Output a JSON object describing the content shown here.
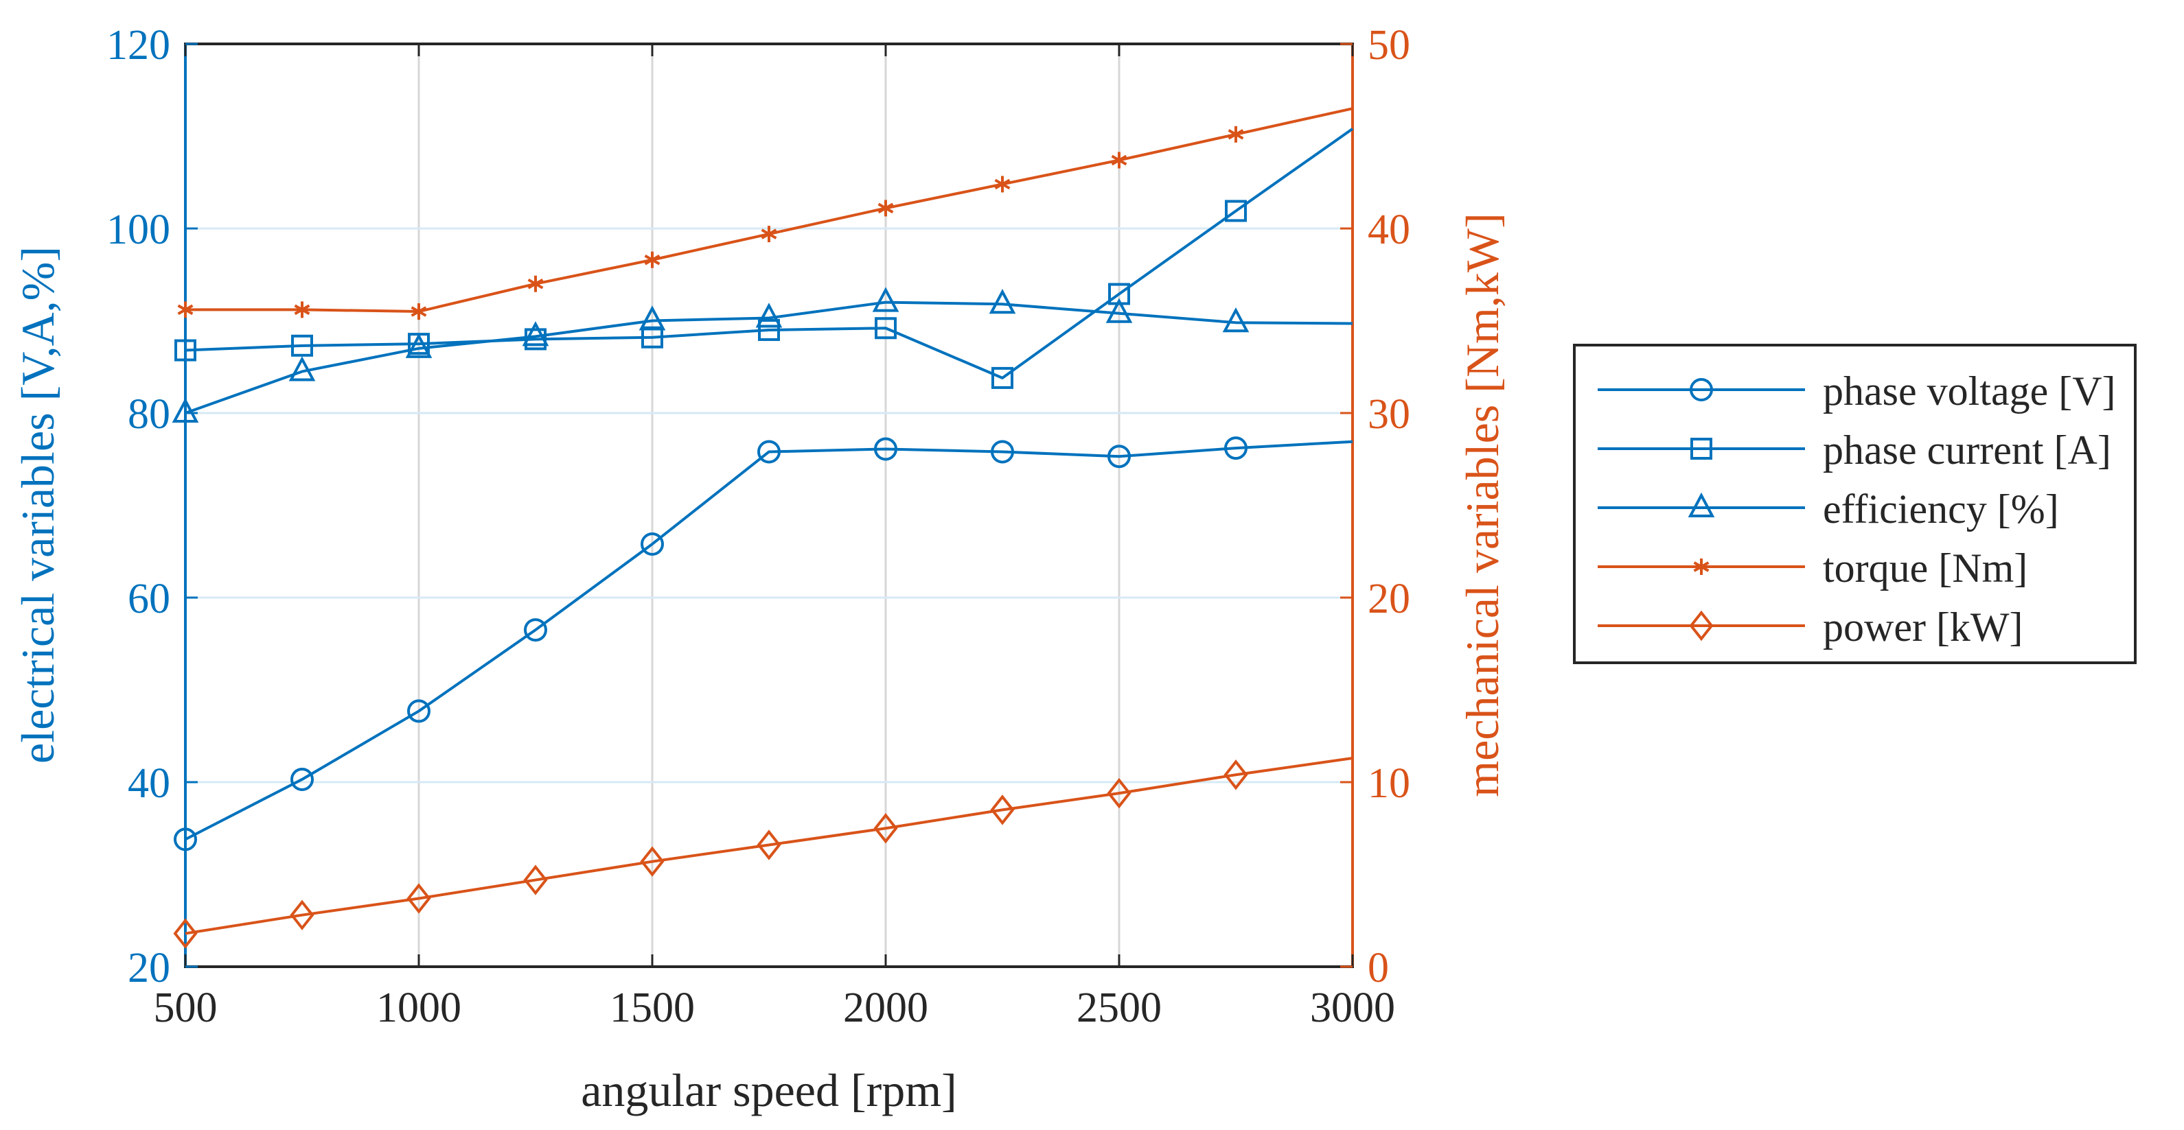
{
  "chart_data": {
    "type": "line",
    "x_label": "angular speed [rpm]",
    "y_left_label": "electrical variables [V,A,%]",
    "y_right_label": "mechanical variables [Nm,kW]",
    "xlim": [
      500,
      3000
    ],
    "ylim_left": [
      20,
      120
    ],
    "ylim_right": [
      0,
      50
    ],
    "x_ticks": [
      500,
      1000,
      1500,
      2000,
      2500,
      3000
    ],
    "y_left_ticks": [
      20,
      40,
      60,
      80,
      100,
      120
    ],
    "y_right_ticks": [
      0,
      10,
      20,
      30,
      40,
      50
    ],
    "grid": true,
    "legend_position": "outside-right",
    "x": [
      500,
      750,
      1000,
      1250,
      1500,
      1750,
      2000,
      2250,
      2500,
      2750,
      3000
    ],
    "series": [
      {
        "name": "phase voltage [V]",
        "axis": "left",
        "marker": "circle",
        "color": "#0072BD",
        "values": [
          33.8,
          40.3,
          47.7,
          56.5,
          65.8,
          75.8,
          76.1,
          75.8,
          75.3,
          76.2,
          76.9
        ]
      },
      {
        "name": "phase current [A]",
        "axis": "left",
        "marker": "square",
        "color": "#0072BD",
        "values": [
          86.8,
          87.3,
          87.5,
          88.0,
          88.2,
          89.0,
          89.2,
          83.8,
          92.9,
          101.9,
          110.8
        ]
      },
      {
        "name": "efficiency [%]",
        "axis": "left",
        "marker": "triangle",
        "color": "#0072BD",
        "values": [
          80.0,
          84.5,
          87.0,
          88.3,
          90.0,
          90.3,
          92.0,
          91.8,
          90.8,
          89.8,
          89.7
        ]
      },
      {
        "name": "torque [Nm]",
        "axis": "right",
        "marker": "asterisk",
        "color": "#D95319",
        "values": [
          35.6,
          35.6,
          35.5,
          37.0,
          38.3,
          39.7,
          41.1,
          42.4,
          43.7,
          45.1,
          46.5
        ]
      },
      {
        "name": "power [kW]",
        "axis": "right",
        "marker": "diamond",
        "color": "#D95319",
        "values": [
          1.8,
          2.8,
          3.7,
          4.7,
          5.7,
          6.6,
          7.5,
          8.5,
          9.4,
          10.4,
          11.3
        ]
      }
    ]
  }
}
